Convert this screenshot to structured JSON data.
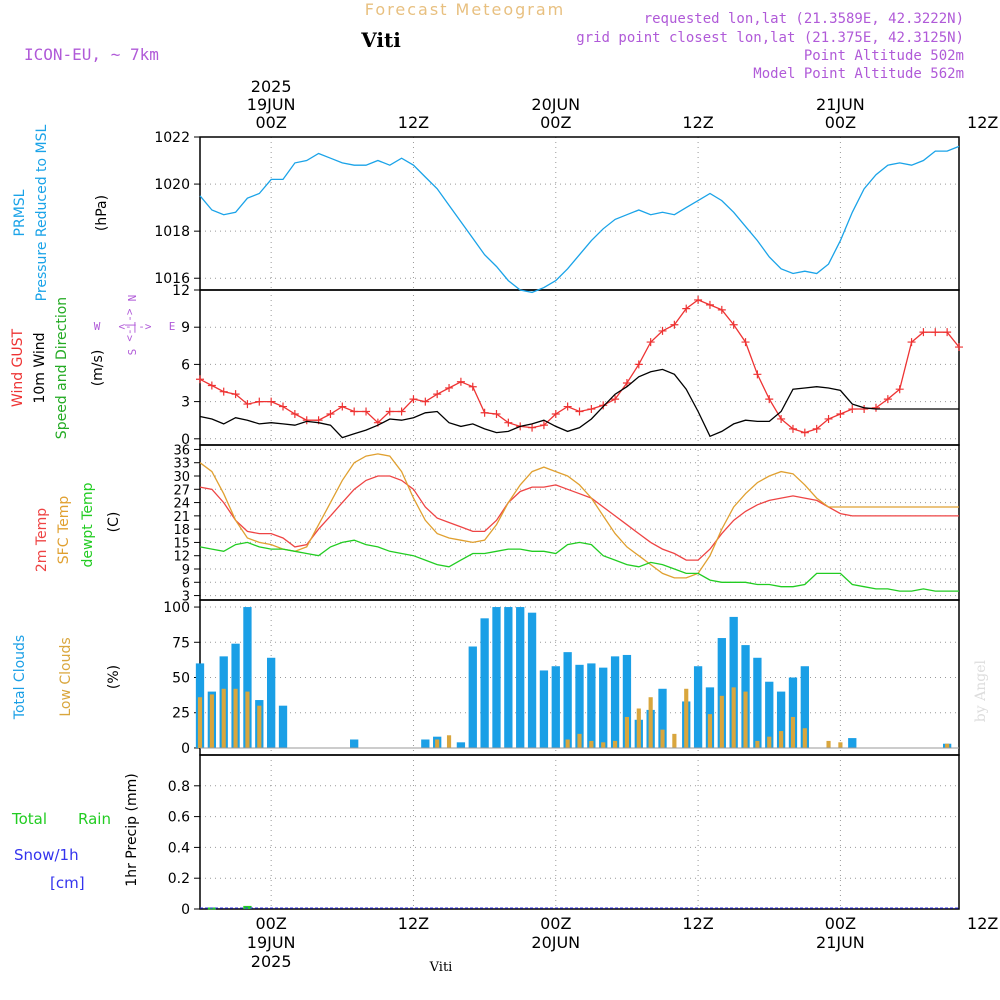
{
  "header": {
    "title": "Forecast Meteogram",
    "location": "Viti",
    "model": "ICON-EU, ~ 7km",
    "requested": "requested lon,lat (21.3589E, 42.3222N)",
    "gridpoint": "grid point closest lon,lat (21.375E, 42.3125N)",
    "point_alt": "Point Altitude 502m",
    "model_alt": "Model Point Altitude 562m",
    "credit": "by Angel",
    "footer_location": "Viti"
  },
  "time_axis": {
    "start_hour": 0,
    "end_hour": 64,
    "ticks": [
      {
        "hour": 6,
        "label": "00Z",
        "date": "19JUN",
        "year": "2025"
      },
      {
        "hour": 18,
        "label": "12Z",
        "date": "",
        "year": ""
      },
      {
        "hour": 30,
        "label": "00Z",
        "date": "20JUN",
        "year": ""
      },
      {
        "hour": 42,
        "label": "12Z",
        "date": "",
        "year": ""
      },
      {
        "hour": 54,
        "label": "00Z",
        "date": "21JUN",
        "year": ""
      },
      {
        "hour": 66,
        "label": "12Z",
        "date": "",
        "year": ""
      }
    ]
  },
  "colors": {
    "pressure": "#1aa3e8",
    "gust": "#ee3333",
    "wind": "#000000",
    "t2m": "#ee4444",
    "sfc": "#e0a030",
    "dewpt": "#22cc22",
    "total_clouds": "#1a9fe6",
    "low_clouds": "#d9a63d",
    "rain": "#22cc22",
    "snow": "#3333ee",
    "purple": "#b05ad8",
    "grid": "#999999"
  },
  "panel_labels": {
    "pressure": [
      "PRMSL",
      "Pressure Reduced to MSL",
      "(hPa)"
    ],
    "wind": [
      "Wind GUST",
      "10m Wind",
      "Speed and Direction",
      "(m/s)"
    ],
    "compass": {
      "n": "N",
      "s": "S",
      "w": "W",
      "e": "E",
      "arrows": "<-|->"
    },
    "temp": [
      "2m Temp",
      "SFC Temp",
      "dewpt Temp",
      "(C)"
    ],
    "clouds": [
      "Total Clouds",
      "Low Clouds",
      "(%)"
    ],
    "precip": [
      "Total",
      "Rain",
      "Snow/1h",
      "[cm]",
      "1hr Precip (mm)"
    ]
  },
  "chart_data": [
    {
      "type": "line",
      "name": "pressure",
      "title": "PRMSL Pressure Reduced to MSL",
      "ylabel": "(hPa)",
      "ylim": [
        1015.5,
        1022
      ],
      "yticks": [
        1016,
        1018,
        1020,
        1022
      ],
      "x": [
        0,
        1,
        2,
        3,
        4,
        5,
        6,
        7,
        8,
        9,
        10,
        11,
        12,
        13,
        14,
        15,
        16,
        17,
        18,
        19,
        20,
        21,
        22,
        23,
        24,
        25,
        26,
        27,
        28,
        29,
        30,
        31,
        32,
        33,
        34,
        35,
        36,
        37,
        38,
        39,
        40,
        41,
        42,
        43,
        44,
        45,
        46,
        47,
        48,
        49,
        50,
        51,
        52,
        53,
        54,
        55,
        56,
        57,
        58,
        59,
        60,
        61,
        62,
        63,
        64
      ],
      "series": [
        {
          "name": "PRMSL",
          "values": [
            1019.5,
            1018.9,
            1018.7,
            1018.8,
            1019.4,
            1019.6,
            1020.2,
            1020.2,
            1020.9,
            1021.0,
            1021.3,
            1021.1,
            1020.9,
            1020.8,
            1020.8,
            1021.0,
            1020.8,
            1021.1,
            1020.8,
            1020.3,
            1019.8,
            1019.1,
            1018.4,
            1017.7,
            1017.0,
            1016.5,
            1015.9,
            1015.5,
            1015.4,
            1015.6,
            1015.9,
            1016.4,
            1017.0,
            1017.6,
            1018.1,
            1018.5,
            1018.7,
            1018.9,
            1018.7,
            1018.8,
            1018.7,
            1019.0,
            1019.3,
            1019.6,
            1019.3,
            1018.8,
            1018.2,
            1017.6,
            1016.9,
            1016.4,
            1016.2,
            1016.3,
            1016.2,
            1016.6,
            1017.6,
            1018.8,
            1019.8,
            1020.4,
            1020.8,
            1020.9,
            1020.8,
            1021.0,
            1021.4,
            1021.4,
            1021.6
          ]
        }
      ]
    },
    {
      "type": "line",
      "name": "wind",
      "title": "Wind GUST / 10m Wind Speed and Direction",
      "ylabel": "(m/s)",
      "ylim": [
        -0.5,
        12
      ],
      "yticks": [
        0,
        3,
        6,
        9,
        12
      ],
      "x": [
        0,
        1,
        2,
        3,
        4,
        5,
        6,
        7,
        8,
        9,
        10,
        11,
        12,
        13,
        14,
        15,
        16,
        17,
        18,
        19,
        20,
        21,
        22,
        23,
        24,
        25,
        26,
        27,
        28,
        29,
        30,
        31,
        32,
        33,
        34,
        35,
        36,
        37,
        38,
        39,
        40,
        41,
        42,
        43,
        44,
        45,
        46,
        47,
        48,
        49,
        50,
        51,
        52,
        53,
        54,
        55,
        56,
        57,
        58,
        59,
        60,
        61,
        62,
        63,
        64
      ],
      "series": [
        {
          "name": "Wind GUST",
          "values": [
            4.8,
            4.3,
            3.8,
            3.6,
            2.8,
            3.0,
            3.0,
            2.6,
            2.0,
            1.5,
            1.5,
            2.0,
            2.6,
            2.2,
            2.2,
            1.3,
            2.2,
            2.2,
            3.2,
            3.0,
            3.6,
            4.1,
            4.6,
            4.2,
            2.1,
            2.0,
            1.3,
            1.0,
            0.9,
            1.1,
            2.0,
            2.6,
            2.2,
            2.4,
            2.7,
            3.2,
            4.5,
            6.0,
            7.8,
            8.7,
            9.2,
            10.5,
            11.2,
            10.8,
            10.4,
            9.2,
            7.8,
            5.2,
            3.2,
            1.6,
            0.8,
            0.5,
            0.8,
            1.6,
            2.0,
            2.4,
            2.4,
            2.5,
            3.2,
            4.0,
            7.8,
            8.6,
            8.6,
            8.6,
            7.4
          ]
        },
        {
          "name": "10m Wind",
          "values": [
            1.8,
            1.6,
            1.2,
            1.7,
            1.5,
            1.2,
            1.3,
            1.2,
            1.1,
            1.4,
            1.3,
            1.1,
            0.1,
            0.4,
            0.7,
            1.1,
            1.6,
            1.5,
            1.7,
            2.1,
            2.2,
            1.3,
            1.0,
            1.2,
            0.8,
            0.5,
            0.6,
            1.0,
            1.2,
            1.5,
            1.0,
            0.6,
            0.9,
            1.6,
            2.6,
            3.6,
            4.2,
            5.0,
            5.4,
            5.6,
            5.2,
            4.0,
            2.2,
            0.2,
            0.6,
            1.2,
            1.5,
            1.4,
            1.4,
            2.2,
            4.0,
            4.1,
            4.2,
            4.1,
            3.9,
            2.8,
            2.5,
            2.4,
            2.4,
            2.4,
            2.4,
            2.4,
            2.4,
            2.4,
            2.4
          ]
        }
      ]
    },
    {
      "type": "line",
      "name": "temperature",
      "title": "2m Temp / SFC Temp / dewpt Temp",
      "ylabel": "(C)",
      "ylim": [
        2,
        37
      ],
      "yticks": [
        3,
        6,
        9,
        12,
        15,
        18,
        21,
        24,
        27,
        30,
        33,
        36
      ],
      "x": [
        0,
        1,
        2,
        3,
        4,
        5,
        6,
        7,
        8,
        9,
        10,
        11,
        12,
        13,
        14,
        15,
        16,
        17,
        18,
        19,
        20,
        21,
        22,
        23,
        24,
        25,
        26,
        27,
        28,
        29,
        30,
        31,
        32,
        33,
        34,
        35,
        36,
        37,
        38,
        39,
        40,
        41,
        42,
        43,
        44,
        45,
        46,
        47,
        48,
        49,
        50,
        51,
        52,
        53,
        54,
        55,
        56,
        57,
        58,
        59,
        60,
        61,
        62,
        63,
        64
      ],
      "series": [
        {
          "name": "2m Temp",
          "values": [
            27.5,
            27.0,
            24.0,
            20.0,
            17.5,
            17.0,
            17.0,
            16.0,
            14.0,
            14.5,
            18.0,
            21.0,
            24.0,
            27.0,
            29.0,
            30.0,
            30.0,
            29.0,
            27.0,
            23.0,
            20.5,
            19.5,
            18.5,
            17.5,
            17.5,
            20.0,
            24.0,
            26.5,
            27.5,
            27.5,
            28.0,
            27.0,
            26.0,
            25.0,
            23.0,
            21.0,
            19.0,
            17.0,
            15.0,
            13.5,
            12.5,
            11.0,
            11.0,
            13.5,
            17.0,
            20.0,
            22.0,
            23.5,
            24.5,
            25.0,
            25.5,
            25.0,
            24.5,
            23.0,
            21.5,
            21.0,
            21.0,
            21.0,
            21.0,
            21.0,
            21.0,
            21.0,
            21.0,
            21.0,
            21.0
          ]
        },
        {
          "name": "SFC Temp",
          "values": [
            33.0,
            31.0,
            26.0,
            20.0,
            16.0,
            15.0,
            14.5,
            13.5,
            13.0,
            14.0,
            19.0,
            24.0,
            29.0,
            33.0,
            34.5,
            35.0,
            34.5,
            31.0,
            25.0,
            20.0,
            17.0,
            16.0,
            15.5,
            15.0,
            15.5,
            19.0,
            24.0,
            28.0,
            31.0,
            32.0,
            31.0,
            30.0,
            28.0,
            25.0,
            21.0,
            17.0,
            14.0,
            12.0,
            10.0,
            8.0,
            7.0,
            7.0,
            8.0,
            12.0,
            18.0,
            23.0,
            26.0,
            28.5,
            30.0,
            31.0,
            30.5,
            28.0,
            25.0,
            23.0,
            23.0,
            23.0,
            23.0,
            23.0,
            23.0,
            23.0,
            23.0,
            23.0,
            23.0,
            23.0,
            23.0
          ]
        },
        {
          "name": "dewpt Temp",
          "values": [
            14.0,
            13.5,
            13.0,
            14.5,
            15.0,
            14.0,
            13.5,
            13.5,
            13.0,
            12.5,
            12.0,
            14.0,
            15.0,
            15.5,
            14.5,
            14.0,
            13.0,
            12.5,
            12.0,
            11.0,
            10.0,
            9.5,
            11.0,
            12.5,
            12.5,
            13.0,
            13.5,
            13.5,
            13.0,
            13.0,
            12.5,
            14.5,
            15.0,
            14.5,
            12.0,
            11.0,
            10.0,
            9.5,
            10.5,
            10.0,
            9.0,
            8.0,
            8.0,
            6.5,
            6.0,
            6.0,
            6.0,
            5.5,
            5.5,
            5.0,
            5.0,
            5.5,
            8.0,
            8.0,
            8.0,
            5.5,
            5.0,
            4.5,
            4.5,
            4.0,
            4.0,
            4.5,
            4.0,
            4.0,
            4.0
          ]
        }
      ]
    },
    {
      "type": "bar",
      "name": "clouds",
      "title": "Total Clouds / Low Clouds",
      "ylabel": "(%)",
      "ylim": [
        -5,
        105
      ],
      "yticks": [
        0,
        25,
        50,
        75,
        100
      ],
      "x": [
        0,
        1,
        2,
        3,
        4,
        5,
        6,
        7,
        8,
        9,
        10,
        11,
        12,
        13,
        14,
        15,
        16,
        17,
        18,
        19,
        20,
        21,
        22,
        23,
        24,
        25,
        26,
        27,
        28,
        29,
        30,
        31,
        32,
        33,
        34,
        35,
        36,
        37,
        38,
        39,
        40,
        41,
        42,
        43,
        44,
        45,
        46,
        47,
        48,
        49,
        50,
        51,
        52,
        53,
        54,
        55,
        56,
        57,
        58,
        59,
        60,
        61,
        62,
        63,
        64
      ],
      "series": [
        {
          "name": "Total Clouds",
          "values": [
            60,
            40,
            65,
            74,
            100,
            34,
            64,
            30,
            0,
            0,
            0,
            0,
            0,
            6,
            0,
            0,
            0,
            0,
            0,
            6,
            8,
            0,
            4,
            72,
            92,
            100,
            100,
            100,
            96,
            55,
            58,
            68,
            59,
            60,
            57,
            65,
            66,
            20,
            27,
            42,
            0,
            33,
            58,
            43,
            78,
            93,
            73,
            64,
            47,
            40,
            50,
            58,
            0,
            0,
            0,
            7,
            0,
            0,
            0,
            0,
            0,
            0,
            0,
            3,
            0
          ]
        },
        {
          "name": "Low Clouds",
          "values": [
            36,
            38,
            42,
            42,
            40,
            30,
            0,
            0,
            0,
            0,
            0,
            0,
            0,
            0,
            0,
            0,
            0,
            0,
            0,
            0,
            6,
            9,
            0,
            0,
            0,
            0,
            0,
            0,
            0,
            0,
            0,
            6,
            10,
            5,
            4,
            5,
            22,
            28,
            36,
            13,
            10,
            42,
            0,
            24,
            37,
            43,
            40,
            5,
            8,
            12,
            22,
            14,
            0,
            5,
            4,
            0,
            0,
            0,
            0,
            0,
            0,
            0,
            0,
            3,
            0
          ]
        }
      ]
    },
    {
      "type": "bar",
      "name": "precip",
      "title": "1hr Precip (mm)",
      "ylabel": "1hr Precip (mm)",
      "ylim": [
        0,
        1
      ],
      "yticks": [
        0,
        0.2,
        0.4,
        0.6,
        0.8
      ],
      "x": [
        0,
        1,
        2,
        3,
        4,
        5,
        6,
        7,
        8,
        9,
        10,
        11,
        12,
        13,
        14,
        15,
        16,
        17,
        18,
        19,
        20,
        21,
        22,
        23,
        24,
        25,
        26,
        27,
        28,
        29,
        30,
        31,
        32,
        33,
        34,
        35,
        36,
        37,
        38,
        39,
        40,
        41,
        42,
        43,
        44,
        45,
        46,
        47,
        48,
        49,
        50,
        51,
        52,
        53,
        54,
        55,
        56,
        57,
        58,
        59,
        60,
        61,
        62,
        63,
        64
      ],
      "series": [
        {
          "name": "Total Rain",
          "values": [
            0,
            0.01,
            0,
            0,
            0.02,
            0,
            0,
            0,
            0,
            0,
            0,
            0,
            0,
            0,
            0,
            0,
            0,
            0,
            0,
            0,
            0,
            0,
            0,
            0,
            0,
            0,
            0,
            0,
            0,
            0,
            0,
            0,
            0,
            0,
            0,
            0,
            0,
            0,
            0,
            0,
            0,
            0,
            0,
            0,
            0,
            0,
            0,
            0,
            0,
            0,
            0,
            0,
            0,
            0,
            0,
            0,
            0,
            0,
            0,
            0,
            0,
            0,
            0,
            0,
            0
          ]
        },
        {
          "name": "Snow/1h",
          "values": [
            0,
            0,
            0,
            0,
            0,
            0,
            0,
            0,
            0,
            0,
            0,
            0,
            0,
            0,
            0,
            0,
            0,
            0,
            0,
            0,
            0,
            0,
            0,
            0,
            0,
            0,
            0,
            0,
            0,
            0,
            0,
            0,
            0,
            0,
            0,
            0,
            0,
            0,
            0,
            0,
            0,
            0,
            0,
            0,
            0,
            0,
            0,
            0,
            0,
            0,
            0,
            0,
            0,
            0,
            0,
            0,
            0,
            0,
            0,
            0,
            0,
            0,
            0,
            0,
            0
          ]
        }
      ]
    }
  ]
}
